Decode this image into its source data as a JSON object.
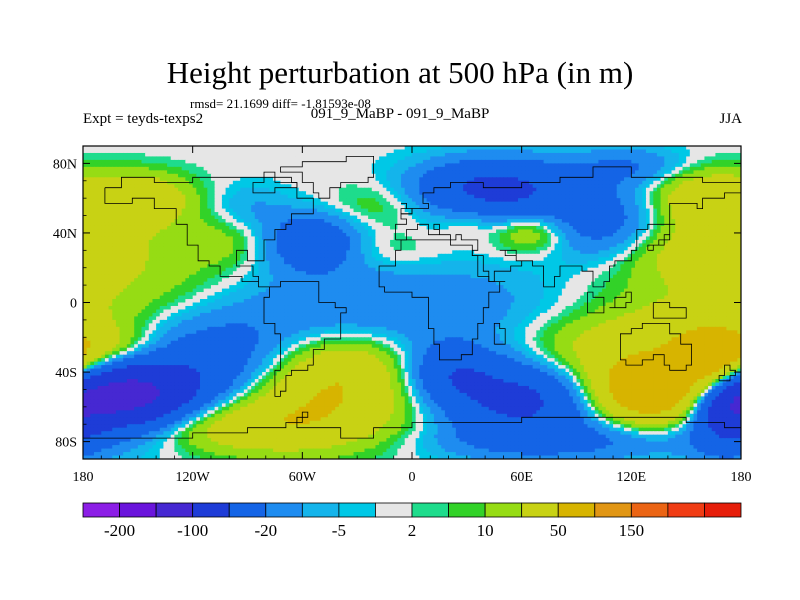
{
  "chart_data": {
    "type": "heatmap",
    "title": "Height perturbation at 500 hPa (in m)",
    "stats_text": "rmsd= 21.1699 diff= -1.81593e-08",
    "left_label": "Expt = teyds-texps2",
    "center_label": "091_9_MaBP - 091_9_MaBP",
    "right_label": "JJA",
    "x_ticks": [
      {
        "value": -180,
        "label": "180"
      },
      {
        "value": -120,
        "label": "120W"
      },
      {
        "value": -60,
        "label": "60W"
      },
      {
        "value": 0,
        "label": "0"
      },
      {
        "value": 60,
        "label": "60E"
      },
      {
        "value": 120,
        "label": "120E"
      },
      {
        "value": 180,
        "label": "180"
      }
    ],
    "y_ticks": [
      {
        "value": 80,
        "label": "80N"
      },
      {
        "value": 40,
        "label": "40N"
      },
      {
        "value": 0,
        "label": "0"
      },
      {
        "value": -40,
        "label": "40S"
      },
      {
        "value": -80,
        "label": "80S"
      }
    ],
    "xlim": [
      -180,
      180
    ],
    "ylim": [
      -90,
      90
    ],
    "colorbar": {
      "colors": [
        "#8c1ee6",
        "#6a14dc",
        "#4628d2",
        "#1e3cd7",
        "#1464e6",
        "#1e8cf0",
        "#14b4eb",
        "#00c8e6",
        "#e6e6e6",
        "#1edc8c",
        "#32d228",
        "#96dc14",
        "#c8d214",
        "#d7b400",
        "#e19614",
        "#eb6414",
        "#f03c14",
        "#e61e0a"
      ],
      "labels": [
        {
          "index": 1,
          "label": "-200"
        },
        {
          "index": 3,
          "label": "-100"
        },
        {
          "index": 5,
          "label": "-20"
        },
        {
          "index": 7,
          "label": "-5"
        },
        {
          "index": 9,
          "label": "2"
        },
        {
          "index": 11,
          "label": "10"
        },
        {
          "index": 13,
          "label": "50"
        },
        {
          "index": 15,
          "label": "150"
        }
      ]
    },
    "anomaly_centers": [
      {
        "lon": -158,
        "lat": -55,
        "value": -110,
        "sx": 26,
        "sy": 15
      },
      {
        "lon": -115,
        "lat": -40,
        "value": -40,
        "sx": 40,
        "sy": 22
      },
      {
        "lon": -60,
        "lat": -62,
        "value": 45,
        "sx": 40,
        "sy": 16
      },
      {
        "lon": -40,
        "lat": -38,
        "value": 40,
        "sx": 28,
        "sy": 14
      },
      {
        "lon": -170,
        "lat": -28,
        "value": 40,
        "sx": 25,
        "sy": 10
      },
      {
        "lon": -120,
        "lat": -72,
        "value": 30,
        "sx": 50,
        "sy": 10
      },
      {
        "lon": 60,
        "lat": -55,
        "value": -60,
        "sx": 32,
        "sy": 16
      },
      {
        "lon": 20,
        "lat": -40,
        "value": -35,
        "sx": 18,
        "sy": 12
      },
      {
        "lon": 130,
        "lat": -52,
        "value": 90,
        "sx": 22,
        "sy": 12
      },
      {
        "lon": 110,
        "lat": -30,
        "value": 35,
        "sx": 35,
        "sy": 15
      },
      {
        "lon": 165,
        "lat": -35,
        "value": 70,
        "sx": 15,
        "sy": 12
      },
      {
        "lon": 172,
        "lat": -62,
        "value": -60,
        "sx": 14,
        "sy": 16
      },
      {
        "lon": 90,
        "lat": -80,
        "value": -20,
        "sx": 60,
        "sy": 8
      },
      {
        "lon": -20,
        "lat": -10,
        "value": -12,
        "sx": 80,
        "sy": 18
      },
      {
        "lon": 0,
        "lat": 5,
        "value": -10,
        "sx": 60,
        "sy": 15
      },
      {
        "lon": 160,
        "lat": 5,
        "value": 15,
        "sx": 50,
        "sy": 22
      },
      {
        "lon": -150,
        "lat": 10,
        "value": 12,
        "sx": 40,
        "sy": 22
      },
      {
        "lon": 160,
        "lat": -12,
        "value": 12,
        "sx": 30,
        "sy": 10
      },
      {
        "lon": -150,
        "lat": 60,
        "value": 40,
        "sx": 20,
        "sy": 10
      },
      {
        "lon": -170,
        "lat": 40,
        "value": 12,
        "sx": 30,
        "sy": 15
      },
      {
        "lon": -90,
        "lat": 55,
        "value": -10,
        "sx": 15,
        "sy": 10
      },
      {
        "lon": -100,
        "lat": 35,
        "value": 12,
        "sx": 20,
        "sy": 10
      },
      {
        "lon": -55,
        "lat": 35,
        "value": -40,
        "sx": 20,
        "sy": 12
      },
      {
        "lon": -20,
        "lat": 55,
        "value": 12,
        "sx": 20,
        "sy": 10
      },
      {
        "lon": -15,
        "lat": 30,
        "value": 8,
        "sx": 20,
        "sy": 8
      },
      {
        "lon": 45,
        "lat": 65,
        "value": -60,
        "sx": 30,
        "sy": 12
      },
      {
        "lon": 30,
        "lat": 48,
        "value": 10,
        "sx": 10,
        "sy": 8
      },
      {
        "lon": 65,
        "lat": 40,
        "value": 25,
        "sx": 14,
        "sy": 8
      },
      {
        "lon": 105,
        "lat": 45,
        "value": -30,
        "sx": 25,
        "sy": 15
      },
      {
        "lon": 160,
        "lat": 60,
        "value": 40,
        "sx": 20,
        "sy": 12
      },
      {
        "lon": 150,
        "lat": 30,
        "value": 20,
        "sx": 25,
        "sy": 12
      },
      {
        "lon": 120,
        "lat": 78,
        "value": -20,
        "sx": 25,
        "sy": 8
      }
    ]
  }
}
